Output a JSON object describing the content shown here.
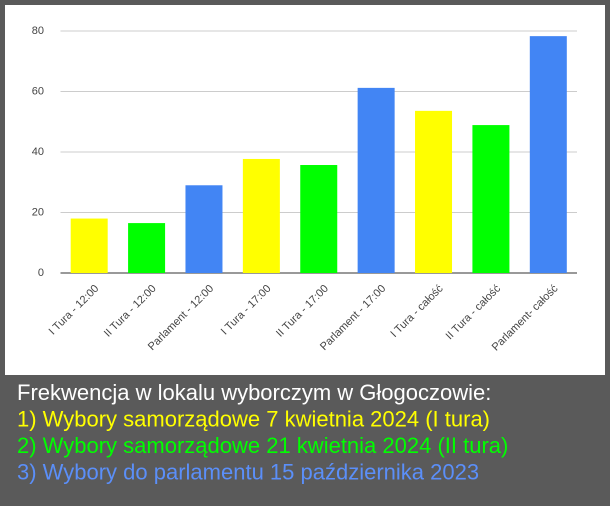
{
  "chart_data": {
    "type": "bar",
    "categories": [
      "I Tura - 12:00",
      "II Tura - 12:00",
      "Parlament - 12:00",
      "I Tura - 17:00",
      "II Tura - 17:00",
      "Parlament - 17:00",
      "I Tura - całość",
      "II Tura - całość",
      "Parlament- całość"
    ],
    "values": [
      18,
      16.5,
      29,
      37.7,
      35.7,
      61.2,
      53.6,
      48.9,
      78.3
    ],
    "colors": [
      "#ffff00",
      "#00ff00",
      "#4285f4",
      "#ffff00",
      "#00ff00",
      "#4285f4",
      "#ffff00",
      "#00ff00",
      "#4285f4"
    ],
    "ylim": [
      0,
      80
    ],
    "yticks": [
      0,
      20,
      40,
      60,
      80
    ],
    "grid": true,
    "caption": [
      {
        "text": "Frekwencja w lokalu wyborczym w Głogoczowie:",
        "color": "#ffffff"
      },
      {
        "text": "1) Wybory samorządowe 7 kwietnia 2024 (I tura)",
        "color": "#ffff00"
      },
      {
        "text": "2) Wybory samorządowe 21 kwietnia 2024 (II tura)",
        "color": "#00ff00"
      },
      {
        "text": "3) Wybory do parlamentu 15 października 2023",
        "color": "#5b8ff9"
      }
    ]
  }
}
